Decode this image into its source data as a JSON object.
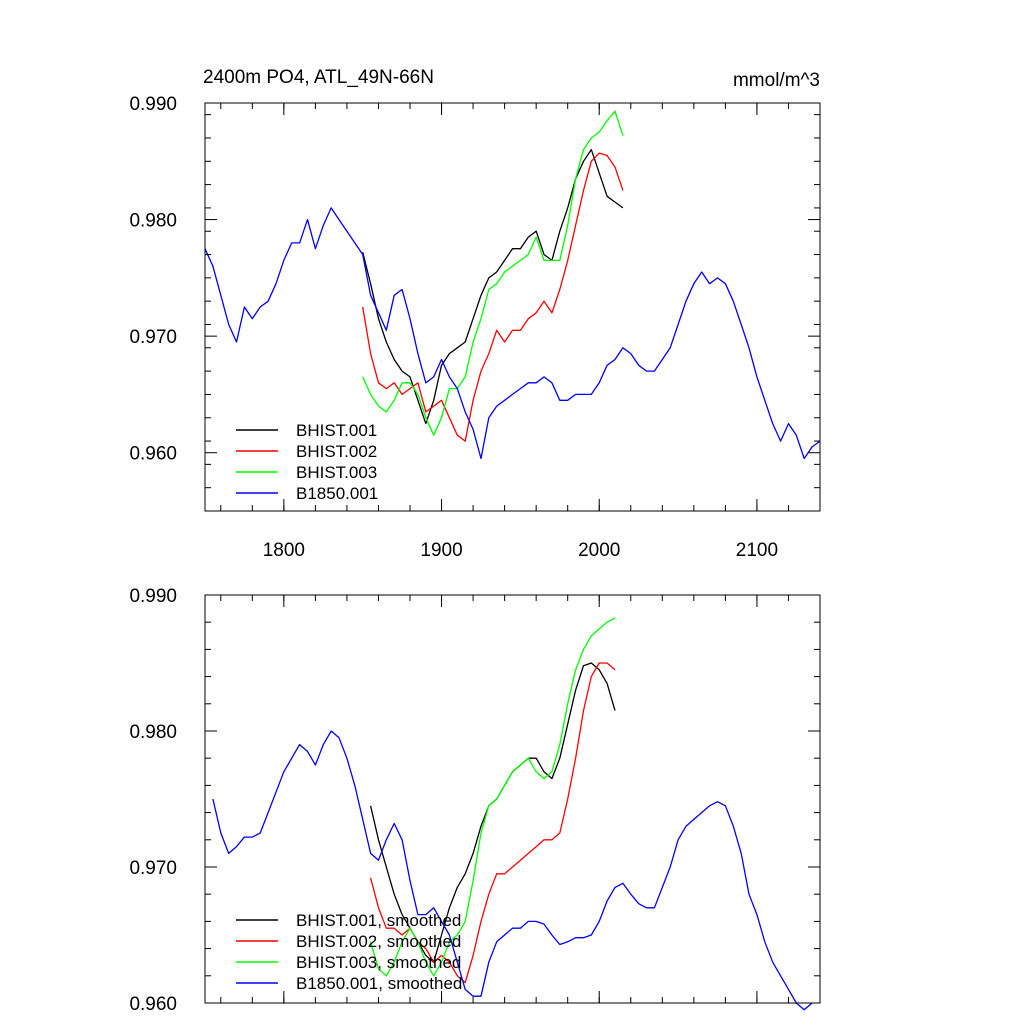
{
  "colors": {
    "BHIST.001": "#000000",
    "BHIST.002": "#ff0000",
    "BHIST.003": "#00ff00",
    "B1850.001": "#0000ff"
  },
  "chart_data": [
    {
      "type": "line",
      "title_left": "2400m PO4, ATL_49N-66N",
      "title_right": "mmol/m^3",
      "xlim": [
        1750,
        2140
      ],
      "ylim": [
        0.955,
        0.99
      ],
      "xticks": [
        1800,
        1900,
        2000,
        2100
      ],
      "xtick_labels": [
        "1800",
        "1900",
        "2000",
        "2100"
      ],
      "yticks": [
        0.96,
        0.97,
        0.98,
        0.99
      ],
      "ytick_labels": [
        "0.960",
        "0.970",
        "0.980",
        "0.990"
      ],
      "legend_position": "bottom-left",
      "series": [
        {
          "name": "BHIST.001",
          "color": "#000000",
          "x": [
            1850,
            1855,
            1860,
            1865,
            1870,
            1875,
            1880,
            1885,
            1890,
            1895,
            1900,
            1905,
            1910,
            1915,
            1920,
            1925,
            1930,
            1935,
            1940,
            1945,
            1950,
            1955,
            1960,
            1965,
            1970,
            1975,
            1980,
            1985,
            1990,
            1995,
            2000,
            2005,
            2010,
            2015
          ],
          "y": [
            0.9772,
            0.9745,
            0.9715,
            0.9695,
            0.968,
            0.967,
            0.9665,
            0.9645,
            0.9625,
            0.9645,
            0.9675,
            0.9685,
            0.969,
            0.9695,
            0.9715,
            0.9735,
            0.975,
            0.9755,
            0.9765,
            0.9775,
            0.9775,
            0.9785,
            0.979,
            0.977,
            0.9765,
            0.979,
            0.981,
            0.9835,
            0.985,
            0.986,
            0.984,
            0.982,
            0.9815,
            0.981
          ]
        },
        {
          "name": "BHIST.002",
          "color": "#ff0000",
          "x": [
            1850,
            1855,
            1860,
            1865,
            1870,
            1875,
            1880,
            1885,
            1890,
            1895,
            1900,
            1905,
            1910,
            1915,
            1920,
            1925,
            1930,
            1935,
            1940,
            1945,
            1950,
            1955,
            1960,
            1965,
            1970,
            1975,
            1980,
            1985,
            1990,
            1995,
            2000,
            2005,
            2010,
            2015
          ],
          "y": [
            0.9725,
            0.9685,
            0.966,
            0.9655,
            0.966,
            0.965,
            0.9655,
            0.966,
            0.9635,
            0.964,
            0.9645,
            0.963,
            0.9615,
            0.961,
            0.9645,
            0.967,
            0.9685,
            0.9705,
            0.9695,
            0.9705,
            0.9705,
            0.9715,
            0.972,
            0.973,
            0.972,
            0.974,
            0.9765,
            0.9795,
            0.9825,
            0.985,
            0.9857,
            0.9855,
            0.9845,
            0.9825
          ]
        },
        {
          "name": "BHIST.003",
          "color": "#00ff00",
          "x": [
            1850,
            1855,
            1860,
            1865,
            1870,
            1875,
            1880,
            1885,
            1890,
            1895,
            1900,
            1905,
            1910,
            1915,
            1920,
            1925,
            1930,
            1935,
            1940,
            1945,
            1950,
            1955,
            1960,
            1965,
            1970,
            1975,
            1980,
            1985,
            1990,
            1995,
            2000,
            2005,
            2010,
            2015
          ],
          "y": [
            0.9665,
            0.965,
            0.964,
            0.9635,
            0.9645,
            0.966,
            0.966,
            0.965,
            0.963,
            0.9615,
            0.963,
            0.9655,
            0.9655,
            0.9665,
            0.9695,
            0.9715,
            0.974,
            0.9745,
            0.9755,
            0.976,
            0.9765,
            0.977,
            0.9785,
            0.9765,
            0.9765,
            0.9765,
            0.9795,
            0.9835,
            0.986,
            0.987,
            0.9875,
            0.9885,
            0.9893,
            0.9872
          ]
        },
        {
          "name": "B1850.001",
          "color": "#0000ff",
          "x": [
            1750,
            1755,
            1760,
            1765,
            1770,
            1775,
            1780,
            1785,
            1790,
            1795,
            1800,
            1805,
            1810,
            1815,
            1820,
            1825,
            1830,
            1835,
            1840,
            1845,
            1850,
            1855,
            1860,
            1865,
            1870,
            1875,
            1880,
            1885,
            1890,
            1895,
            1900,
            1905,
            1910,
            1915,
            1920,
            1925,
            1930,
            1935,
            1940,
            1945,
            1950,
            1955,
            1960,
            1965,
            1970,
            1975,
            1980,
            1985,
            1990,
            1995,
            2000,
            2005,
            2010,
            2015,
            2020,
            2025,
            2030,
            2035,
            2040,
            2045,
            2050,
            2055,
            2060,
            2065,
            2070,
            2075,
            2080,
            2085,
            2090,
            2095,
            2100,
            2105,
            2110,
            2115,
            2120,
            2125,
            2130,
            2135,
            2140
          ],
          "y": [
            0.9775,
            0.976,
            0.9735,
            0.971,
            0.9695,
            0.9725,
            0.9715,
            0.9725,
            0.973,
            0.9745,
            0.9765,
            0.978,
            0.978,
            0.98,
            0.9775,
            0.9795,
            0.981,
            0.98,
            0.979,
            0.978,
            0.977,
            0.9735,
            0.972,
            0.9705,
            0.9735,
            0.974,
            0.9715,
            0.9685,
            0.966,
            0.9665,
            0.968,
            0.9665,
            0.9655,
            0.9635,
            0.962,
            0.9595,
            0.963,
            0.964,
            0.9645,
            0.965,
            0.9655,
            0.966,
            0.966,
            0.9665,
            0.966,
            0.9645,
            0.9645,
            0.965,
            0.965,
            0.965,
            0.966,
            0.9675,
            0.968,
            0.969,
            0.9685,
            0.9675,
            0.967,
            0.967,
            0.968,
            0.969,
            0.971,
            0.973,
            0.9745,
            0.9755,
            0.9745,
            0.975,
            0.9745,
            0.973,
            0.971,
            0.969,
            0.9665,
            0.9645,
            0.9625,
            0.961,
            0.9625,
            0.9615,
            0.9595,
            0.9605,
            0.961
          ]
        }
      ]
    },
    {
      "type": "line",
      "xlim": [
        1750,
        2140
      ],
      "ylim": [
        0.96,
        0.99
      ],
      "xticks": [
        1800,
        1900,
        2000,
        2100
      ],
      "yticks": [
        0.96,
        0.97,
        0.98,
        0.99
      ],
      "ytick_labels": [
        "0.960",
        "0.970",
        "0.980",
        "0.990"
      ],
      "legend_position": "bottom-left",
      "series": [
        {
          "name": "BHIST.001, smoothed",
          "color": "#000000",
          "x": [
            1855,
            1860,
            1865,
            1870,
            1875,
            1880,
            1885,
            1890,
            1895,
            1900,
            1905,
            1910,
            1915,
            1920,
            1925,
            1930,
            1935,
            1940,
            1945,
            1950,
            1955,
            1960,
            1965,
            1970,
            1975,
            1980,
            1985,
            1990,
            1995,
            2000,
            2005,
            2010
          ],
          "y": [
            0.9745,
            0.972,
            0.97,
            0.968,
            0.9665,
            0.9655,
            0.9645,
            0.9635,
            0.963,
            0.965,
            0.967,
            0.9685,
            0.9695,
            0.971,
            0.973,
            0.9745,
            0.975,
            0.976,
            0.977,
            0.9775,
            0.978,
            0.978,
            0.977,
            0.9765,
            0.978,
            0.9805,
            0.983,
            0.9848,
            0.985,
            0.9845,
            0.9835,
            0.9815
          ]
        },
        {
          "name": "BHIST.002, smoothed",
          "color": "#ff0000",
          "x": [
            1855,
            1860,
            1865,
            1870,
            1875,
            1880,
            1885,
            1890,
            1895,
            1900,
            1905,
            1910,
            1915,
            1920,
            1925,
            1930,
            1935,
            1940,
            1945,
            1950,
            1955,
            1960,
            1965,
            1970,
            1975,
            1980,
            1985,
            1990,
            1995,
            2000,
            2005,
            2010
          ],
          "y": [
            0.9692,
            0.967,
            0.9655,
            0.9655,
            0.965,
            0.9655,
            0.9645,
            0.964,
            0.963,
            0.9635,
            0.963,
            0.962,
            0.9615,
            0.9635,
            0.966,
            0.968,
            0.9695,
            0.9695,
            0.97,
            0.9705,
            0.971,
            0.9715,
            0.972,
            0.972,
            0.9725,
            0.975,
            0.978,
            0.9815,
            0.984,
            0.985,
            0.985,
            0.9845
          ]
        },
        {
          "name": "BHIST.003, smoothed",
          "color": "#00ff00",
          "x": [
            1855,
            1860,
            1865,
            1870,
            1875,
            1880,
            1885,
            1890,
            1895,
            1900,
            1905,
            1910,
            1915,
            1920,
            1925,
            1930,
            1935,
            1940,
            1945,
            1950,
            1955,
            1960,
            1965,
            1970,
            1975,
            1980,
            1985,
            1990,
            1995,
            2000,
            2005,
            2010
          ],
          "y": [
            0.9645,
            0.9625,
            0.962,
            0.963,
            0.9645,
            0.9655,
            0.9645,
            0.963,
            0.962,
            0.963,
            0.9645,
            0.965,
            0.966,
            0.969,
            0.9725,
            0.9745,
            0.975,
            0.976,
            0.977,
            0.9775,
            0.978,
            0.977,
            0.9765,
            0.977,
            0.979,
            0.982,
            0.9845,
            0.986,
            0.987,
            0.9875,
            0.988,
            0.9883
          ]
        },
        {
          "name": "B1850.001, smoothed",
          "color": "#0000ff",
          "x": [
            1755,
            1760,
            1765,
            1770,
            1775,
            1780,
            1785,
            1790,
            1795,
            1800,
            1805,
            1810,
            1815,
            1820,
            1825,
            1830,
            1835,
            1840,
            1845,
            1850,
            1855,
            1860,
            1865,
            1870,
            1875,
            1880,
            1885,
            1890,
            1895,
            1900,
            1905,
            1910,
            1915,
            1920,
            1925,
            1930,
            1935,
            1940,
            1945,
            1950,
            1955,
            1960,
            1965,
            1970,
            1975,
            1980,
            1985,
            1990,
            1995,
            2000,
            2005,
            2010,
            2015,
            2020,
            2025,
            2030,
            2035,
            2040,
            2045,
            2050,
            2055,
            2060,
            2065,
            2070,
            2075,
            2080,
            2085,
            2090,
            2095,
            2100,
            2105,
            2110,
            2115,
            2120,
            2125,
            2130,
            2135
          ],
          "y": [
            0.975,
            0.9725,
            0.971,
            0.9715,
            0.9722,
            0.9722,
            0.9725,
            0.974,
            0.9755,
            0.977,
            0.978,
            0.979,
            0.9785,
            0.9775,
            0.979,
            0.98,
            0.9795,
            0.978,
            0.976,
            0.9735,
            0.971,
            0.9705,
            0.972,
            0.9732,
            0.972,
            0.969,
            0.9665,
            0.9665,
            0.967,
            0.966,
            0.965,
            0.963,
            0.961,
            0.9605,
            0.9605,
            0.963,
            0.9645,
            0.965,
            0.9655,
            0.9655,
            0.966,
            0.966,
            0.9658,
            0.965,
            0.9643,
            0.9645,
            0.9648,
            0.9648,
            0.965,
            0.966,
            0.9675,
            0.9685,
            0.9688,
            0.968,
            0.9673,
            0.967,
            0.967,
            0.9685,
            0.97,
            0.972,
            0.973,
            0.9735,
            0.974,
            0.9745,
            0.9748,
            0.9745,
            0.973,
            0.971,
            0.968,
            0.9665,
            0.9645,
            0.963,
            0.962,
            0.961,
            0.96,
            0.9595,
            0.96
          ]
        }
      ]
    }
  ]
}
